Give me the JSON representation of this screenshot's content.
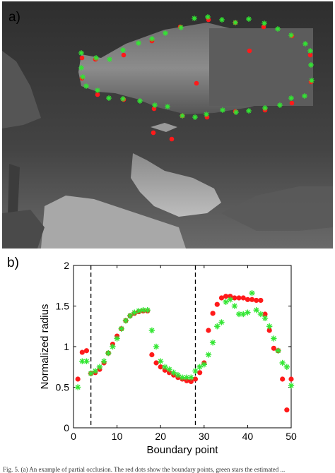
{
  "figure": {
    "panel_a_label": "a)",
    "panel_b_label": "b)",
    "caption": "Fig. 5. (a) An example of partial occlusion. The red dots show the boundary points, green stars the estimated ..."
  },
  "colors": {
    "red_series": "#ff1a1a",
    "green_series": "#33e633",
    "occluder": "#5c5c5c",
    "water": "#3a3a3a"
  },
  "chart_data": {
    "type": "scatter",
    "xlabel": "Boundary point",
    "ylabel": "Normalized radius",
    "xlim": [
      0,
      50
    ],
    "ylim": [
      0,
      2
    ],
    "x_ticks": [
      0,
      10,
      20,
      30,
      40,
      50
    ],
    "y_ticks": [
      0,
      0.5,
      1,
      1.5,
      2
    ],
    "vertical_lines": [
      4,
      28
    ],
    "grid": false,
    "series": [
      {
        "marker": "dot",
        "color": "#ff1a1a",
        "x": [
          1,
          2,
          3,
          4,
          5,
          6,
          7,
          8,
          9,
          10,
          11,
          12,
          13,
          14,
          15,
          16,
          17,
          18,
          19,
          20,
          21,
          22,
          23,
          24,
          25,
          26,
          27,
          28,
          29,
          30,
          31,
          32,
          33,
          34,
          35,
          36,
          37,
          38,
          39,
          40,
          41,
          42,
          43,
          44,
          45,
          46,
          47,
          48,
          49,
          50
        ],
        "y": [
          0.6,
          0.93,
          0.95,
          0.67,
          0.68,
          0.72,
          0.8,
          0.92,
          1.03,
          1.13,
          1.22,
          1.32,
          1.38,
          1.41,
          1.43,
          1.44,
          1.44,
          0.9,
          0.8,
          0.75,
          0.71,
          0.68,
          0.65,
          0.62,
          0.6,
          0.58,
          0.57,
          0.6,
          0.68,
          0.8,
          1.2,
          1.41,
          1.52,
          1.6,
          1.62,
          1.62,
          1.6,
          1.6,
          1.6,
          1.58,
          1.58,
          1.57,
          1.57,
          1.4,
          1.2,
          0.98,
          0.95,
          0.6,
          0.22,
          0.6
        ]
      },
      {
        "marker": "star",
        "color": "#33e633",
        "x": [
          1,
          2,
          3,
          4,
          5,
          6,
          7,
          8,
          9,
          10,
          11,
          12,
          13,
          14,
          15,
          16,
          17,
          18,
          19,
          20,
          21,
          22,
          23,
          24,
          25,
          26,
          27,
          28,
          29,
          30,
          31,
          32,
          33,
          34,
          35,
          36,
          37,
          38,
          39,
          40,
          41,
          42,
          43,
          44,
          45,
          46,
          47,
          48,
          49,
          50
        ],
        "y": [
          0.5,
          0.82,
          0.82,
          0.67,
          0.7,
          0.75,
          0.82,
          0.92,
          1.0,
          1.1,
          1.22,
          1.32,
          1.38,
          1.42,
          1.44,
          1.45,
          1.45,
          1.2,
          1.0,
          0.82,
          0.75,
          0.72,
          0.68,
          0.65,
          0.62,
          0.62,
          0.62,
          0.7,
          0.75,
          0.78,
          0.9,
          1.05,
          1.25,
          1.3,
          1.55,
          1.58,
          1.5,
          1.4,
          1.4,
          1.42,
          1.66,
          1.45,
          1.4,
          1.35,
          1.25,
          1.1,
          0.95,
          0.8,
          0.75,
          0.52
        ]
      }
    ]
  }
}
